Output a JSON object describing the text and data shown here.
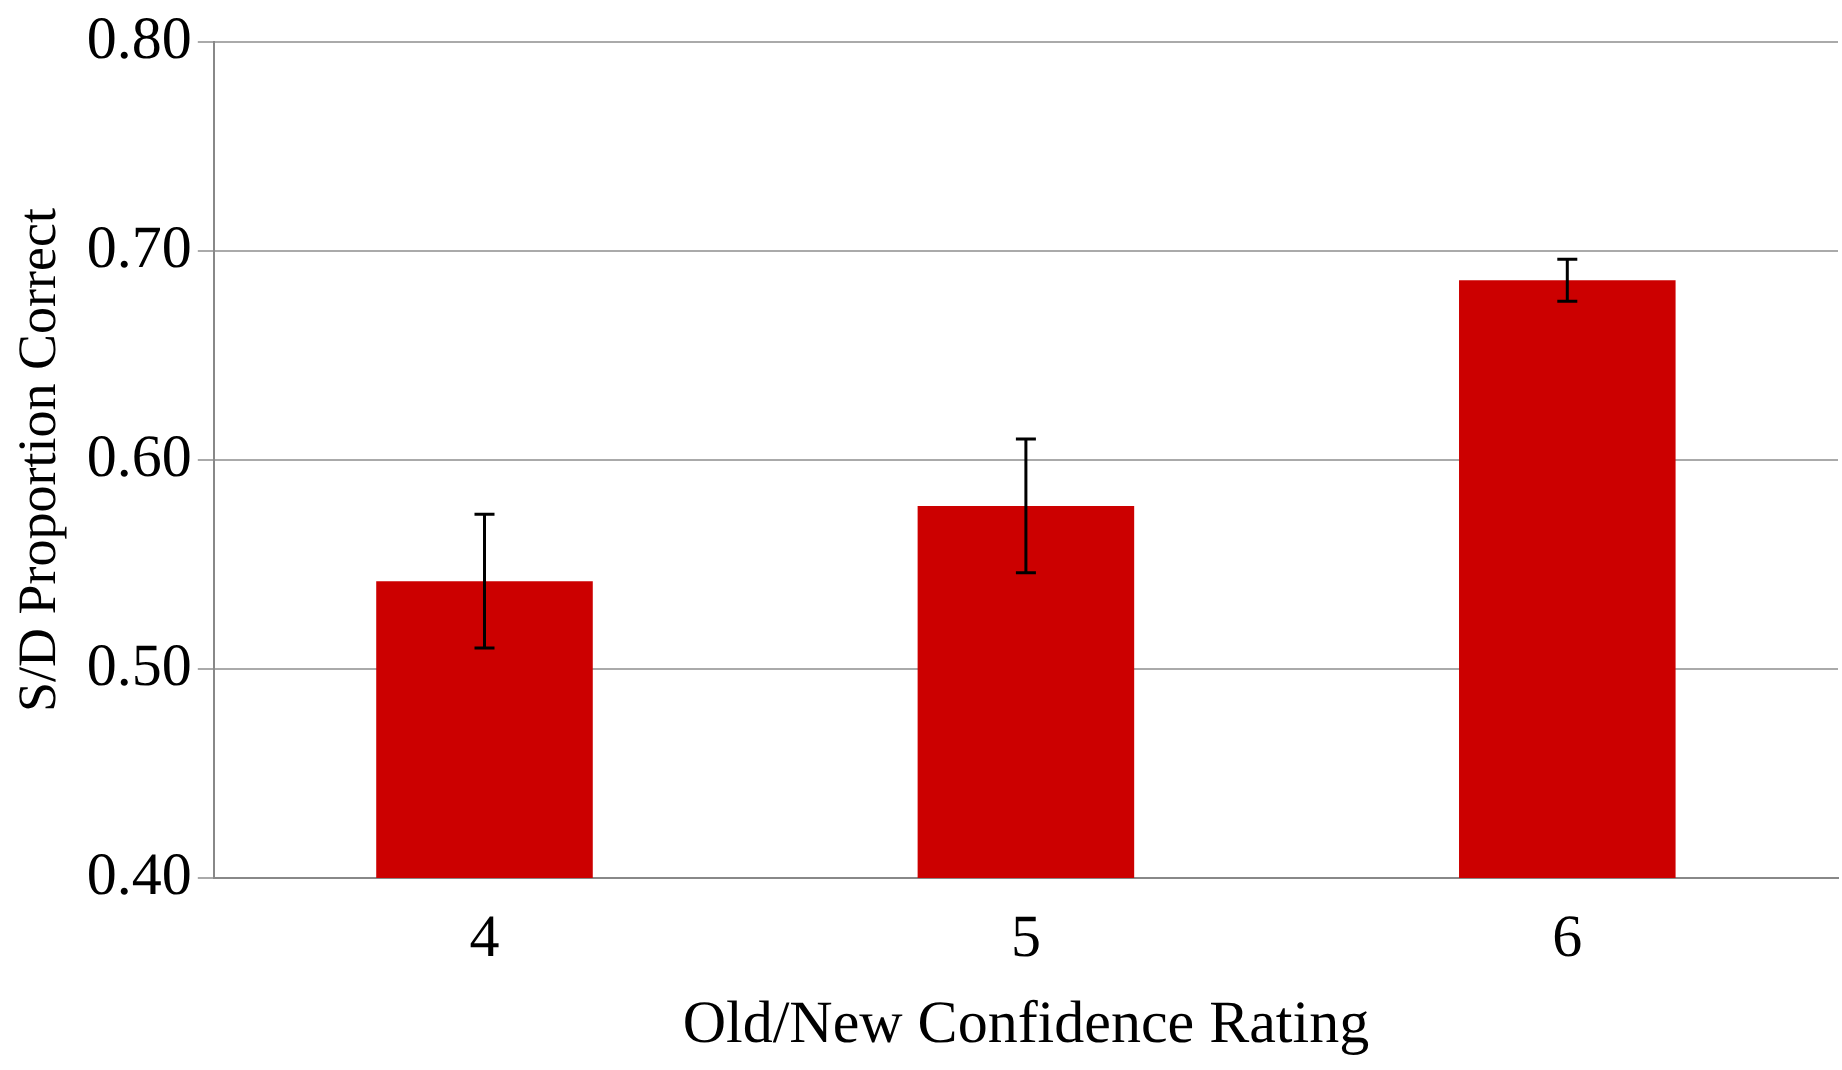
{
  "chart_data": {
    "type": "bar",
    "xlabel": "Old/New Confidence Rating",
    "ylabel": "S/D Proportion Correct",
    "categories": [
      "4",
      "5",
      "6"
    ],
    "values": [
      0.542,
      0.578,
      0.686
    ],
    "errors": [
      0.032,
      0.032,
      0.01
    ],
    "color": "#cc0000",
    "ylim": [
      0.4,
      0.8
    ],
    "yticks": [
      {
        "value": 0.4,
        "label": "0.40"
      },
      {
        "value": 0.5,
        "label": "0.50"
      },
      {
        "value": 0.6,
        "label": "0.60"
      },
      {
        "value": 0.7,
        "label": "0.70"
      },
      {
        "value": 0.8,
        "label": "0.80"
      }
    ],
    "grid": "y",
    "legend": false
  }
}
